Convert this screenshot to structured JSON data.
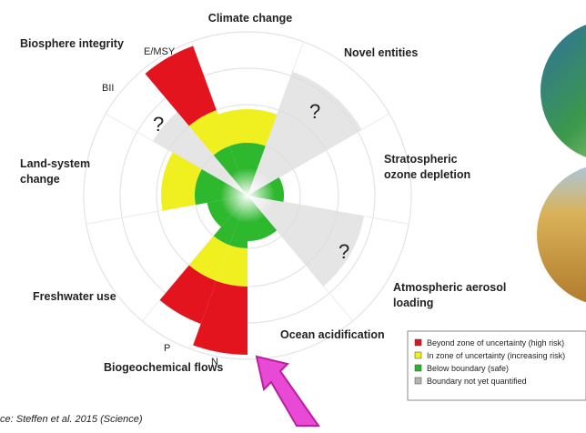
{
  "labels": {
    "climate": "Climate change",
    "biosphere": "Biosphere integrity",
    "novel": "Novel entities",
    "land_1": "Land-system",
    "land_2": "change",
    "ozone_1": "Stratospheric",
    "ozone_2": "ozone depletion",
    "aerosol_1": "Atmospheric aerosol",
    "aerosol_2": "loading",
    "freshwater": "Freshwater use",
    "ocean": "Ocean acidification",
    "biogeochemical": "Biogeochemical flows"
  },
  "sub_labels": {
    "emsy": "E/MSY",
    "bii": "BII",
    "p": "P",
    "n": "N"
  },
  "question_marks": [
    "?",
    "?",
    "?"
  ],
  "legend": [
    "Beyond zone of uncertainty (high risk)",
    "In zone of uncertainty (increasing risk)",
    "Below boundary (safe)",
    "Boundary not yet quantified"
  ],
  "source": "ce: Steffen et al. 2015 (Science)"
}
